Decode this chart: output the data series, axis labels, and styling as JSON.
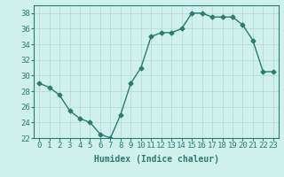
{
  "title": "",
  "xlabel": "Humidex (Indice chaleur)",
  "x": [
    0,
    1,
    2,
    3,
    4,
    5,
    6,
    7,
    8,
    9,
    10,
    11,
    12,
    13,
    14,
    15,
    16,
    17,
    18,
    19,
    20,
    21,
    22,
    23
  ],
  "y": [
    29,
    28.5,
    27.5,
    25.5,
    24.5,
    24,
    22.5,
    22,
    25,
    29,
    31,
    35,
    35.5,
    35.5,
    36,
    38,
    38,
    37.5,
    37.5,
    37.5,
    36.5,
    34.5,
    30.5,
    30.5
  ],
  "line_color": "#2a7d6e",
  "marker": "D",
  "marker_size": 2.5,
  "line_width": 1.0,
  "bg_color": "#cff0ec",
  "grid_color": "#b5ddd8",
  "ylim": [
    22,
    39
  ],
  "xlim": [
    -0.5,
    23.5
  ],
  "yticks": [
    22,
    24,
    26,
    28,
    30,
    32,
    34,
    36,
    38
  ],
  "xticks": [
    0,
    1,
    2,
    3,
    4,
    5,
    6,
    7,
    8,
    9,
    10,
    11,
    12,
    13,
    14,
    15,
    16,
    17,
    18,
    19,
    20,
    21,
    22,
    23
  ],
  "xlabel_fontsize": 7,
  "tick_fontsize": 6.5
}
